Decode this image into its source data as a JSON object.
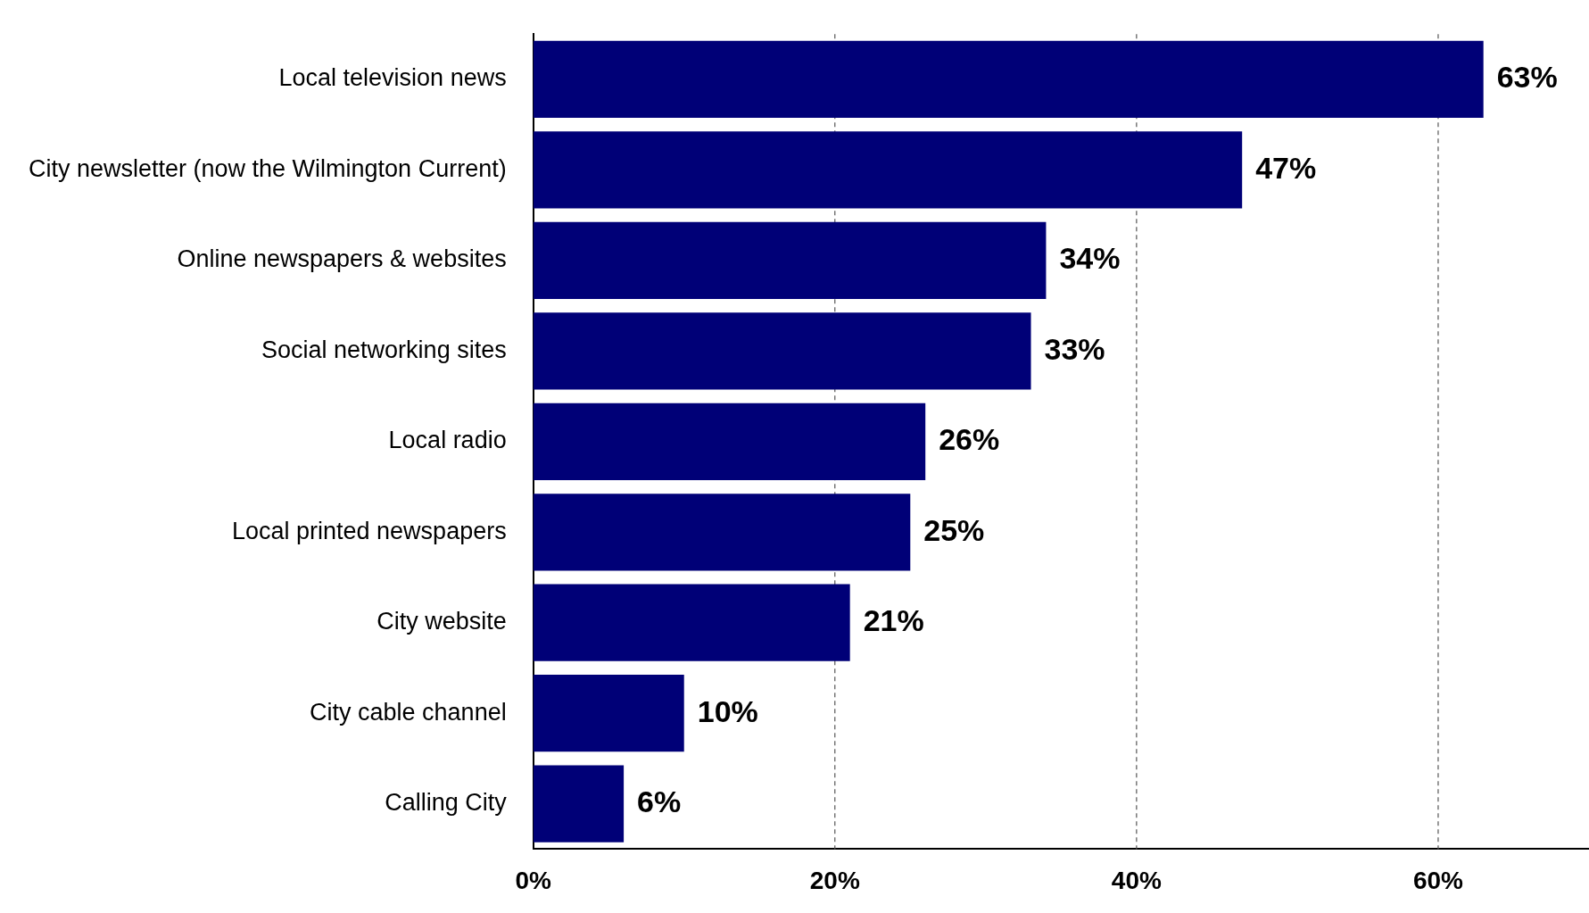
{
  "chart_data": {
    "type": "bar",
    "orientation": "horizontal",
    "categories": [
      "Local television news",
      "City newsletter (now the Wilmington Current)",
      "Online newspapers & websites",
      "Social networking sites",
      "Local radio",
      "Local printed newspapers",
      "City website",
      "City cable channel",
      "Calling City"
    ],
    "values": [
      63,
      47,
      34,
      33,
      26,
      25,
      21,
      10,
      6
    ],
    "value_labels": [
      "63%",
      "47%",
      "34%",
      "33%",
      "26%",
      "25%",
      "21%",
      "10%",
      "6%"
    ],
    "color": "#000077",
    "xlim": [
      0,
      70
    ],
    "xticks": [
      {
        "value": 0,
        "label": "0%"
      },
      {
        "value": 20,
        "label": "20%"
      },
      {
        "value": 40,
        "label": "40%"
      },
      {
        "value": 60,
        "label": "60%"
      }
    ],
    "grid": "x",
    "legend": false
  }
}
